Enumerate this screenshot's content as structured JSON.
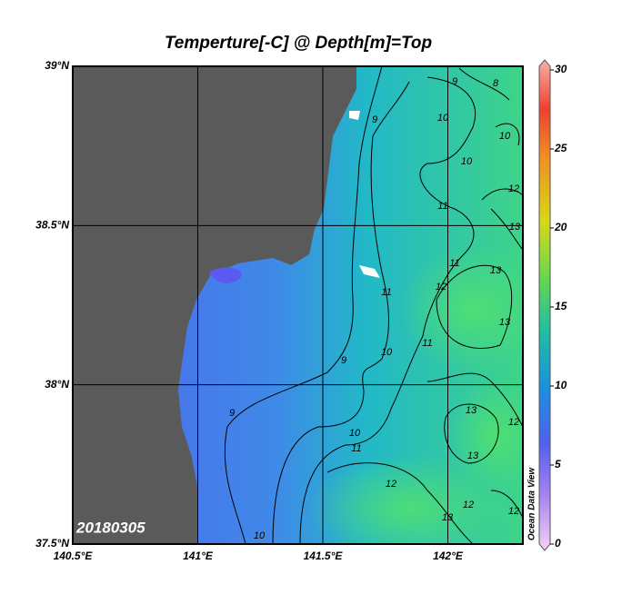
{
  "title": "Temperture[-C] @ Depth[m]=Top",
  "date_stamp": "20180305",
  "watermark": "Ocean Data View",
  "map": {
    "xlim": [
      140.5,
      142.3
    ],
    "ylim": [
      37.5,
      39
    ],
    "xticks": [
      {
        "value": 140.5,
        "label": "140.5°E"
      },
      {
        "value": 141,
        "label": "141°E"
      },
      {
        "value": 141.5,
        "label": "141.5°E"
      },
      {
        "value": 142,
        "label": "142°E"
      }
    ],
    "yticks": [
      {
        "value": 37.5,
        "label": "37.5°N"
      },
      {
        "value": 38,
        "label": "38°N"
      },
      {
        "value": 38.5,
        "label": "38.5°N"
      },
      {
        "value": 39,
        "label": "39°N"
      }
    ],
    "grid": true,
    "contour_labels": [
      9,
      8,
      9,
      10,
      10,
      10,
      11,
      12,
      13,
      11,
      13,
      12,
      11,
      13,
      11,
      10,
      9,
      9,
      10,
      11,
      13,
      12,
      13,
      12,
      12,
      12,
      13,
      10
    ]
  },
  "colorbar": {
    "clim": [
      0,
      30
    ],
    "ticks": [
      0,
      5,
      10,
      15,
      20,
      25,
      30
    ]
  }
}
